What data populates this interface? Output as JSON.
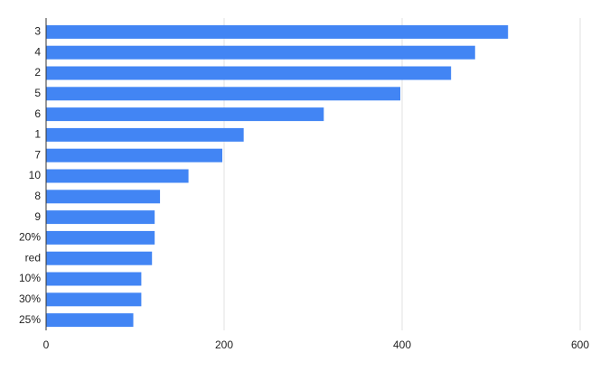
{
  "chart_data": {
    "type": "bar",
    "orientation": "horizontal",
    "categories": [
      "3",
      "4",
      "2",
      "5",
      "6",
      "1",
      "7",
      "10",
      "8",
      "9",
      "20%",
      "red",
      "10%",
      "30%",
      "25%"
    ],
    "values": [
      519,
      482,
      455,
      398,
      312,
      222,
      198,
      160,
      128,
      122,
      122,
      119,
      107,
      107,
      98
    ],
    "color": "#4285f4",
    "xlim": [
      0,
      600
    ],
    "xticks": [
      0,
      200,
      400,
      600
    ],
    "grid": true
  }
}
